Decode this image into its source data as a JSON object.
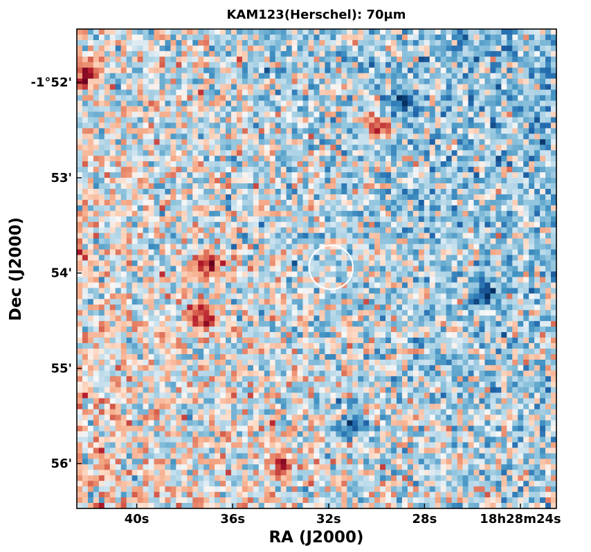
{
  "chart_data": {
    "type": "heatmap",
    "title": "KAM123(Herschel): 70μm",
    "xlabel": "RA (J2000)",
    "ylabel": "Dec (J2000)",
    "x_ticks": [
      "40s",
      "36s",
      "32s",
      "28s",
      "18h28m24s"
    ],
    "x_tick_values_s": [
      40,
      36,
      32,
      28,
      24
    ],
    "y_ticks": [
      "-1°52'",
      "53'",
      "54'",
      "55'",
      "56'"
    ],
    "y_tick_values_arcmin": [
      -52,
      -53,
      -54,
      -55,
      -56
    ],
    "xlim_s": [
      42.5,
      22.5
    ],
    "ylim_arcmin": [
      -51.44,
      -56.47
    ],
    "colormap": "RdBu_r",
    "colorbar": false,
    "grid": false,
    "circle_marker": {
      "ra_s": 31.9,
      "dec_arcmin": -53.94,
      "radius_arcmin": 0.23,
      "color": "#ffffff"
    },
    "hot_spots": [
      {
        "ra_s": 37.3,
        "dec_arcmin": -54.45,
        "level": 0.95
      },
      {
        "ra_s": 37.0,
        "dec_arcmin": -53.9,
        "level": 0.85
      },
      {
        "ra_s": 42.2,
        "dec_arcmin": -51.9,
        "level": 0.8
      },
      {
        "ra_s": 30.0,
        "dec_arcmin": -52.45,
        "level": 0.75
      },
      {
        "ra_s": 34.0,
        "dec_arcmin": -56.0,
        "level": 0.8
      }
    ],
    "cold_spots": [
      {
        "ra_s": 29.0,
        "dec_arcmin": -52.2,
        "level": -0.7
      },
      {
        "ra_s": 25.5,
        "dec_arcmin": -54.2,
        "level": -0.75
      },
      {
        "ra_s": 31.0,
        "dec_arcmin": -55.6,
        "level": -0.7
      }
    ]
  }
}
